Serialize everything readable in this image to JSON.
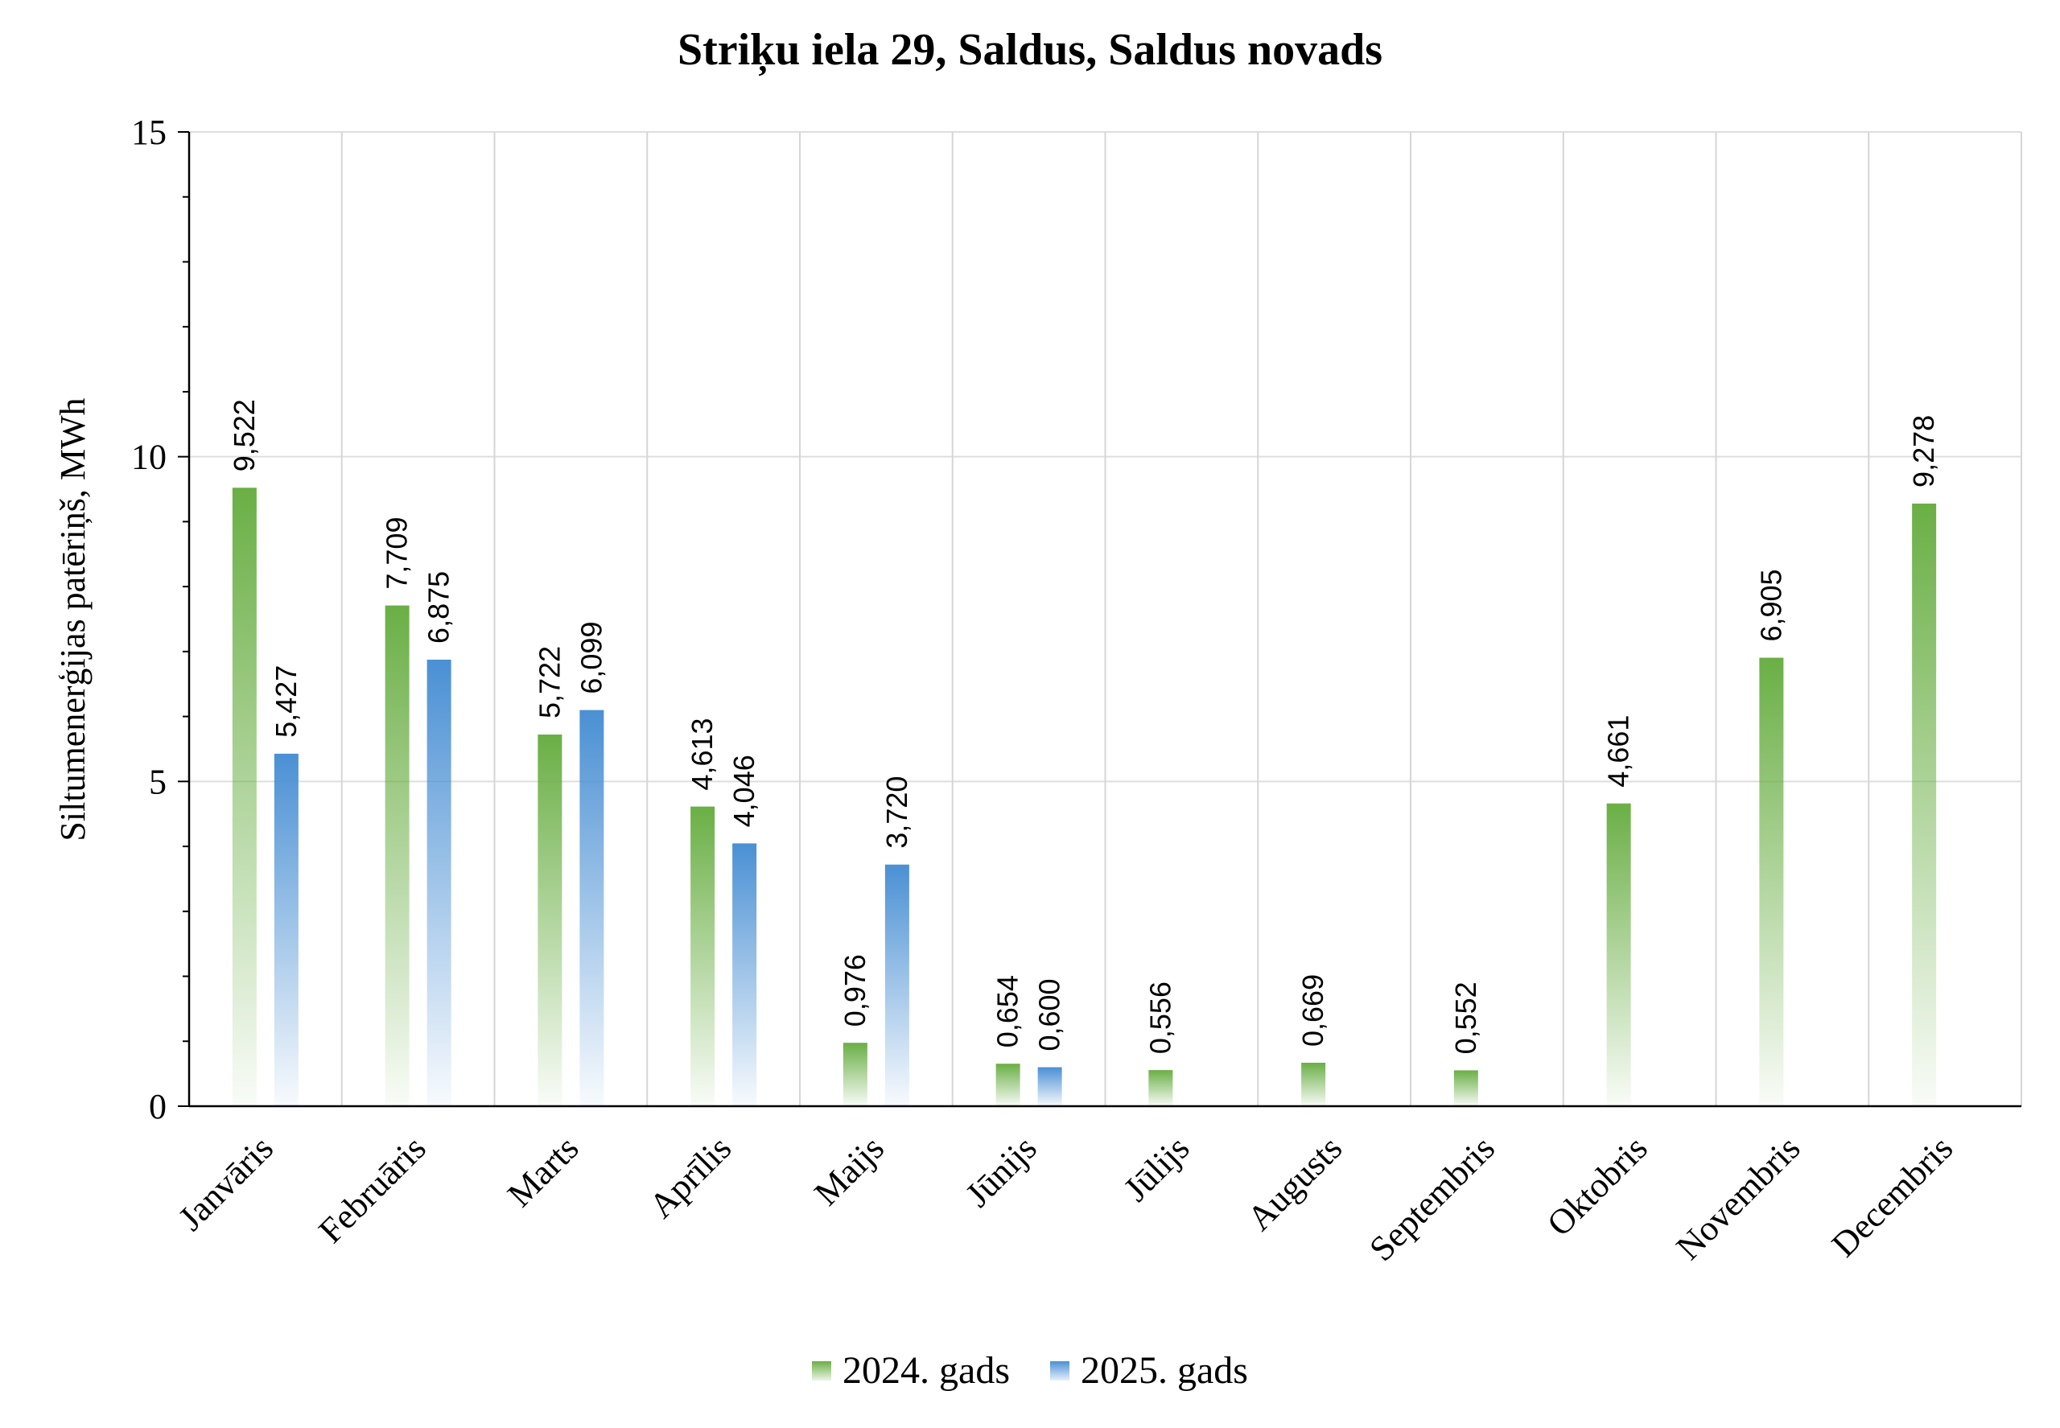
{
  "chart_data": {
    "type": "bar",
    "title": "Striķu iela 29, Saldus, Saldus novads",
    "ylabel": "Siltumenerģijas patēriņš, MWh",
    "xlabel": "",
    "ylim": [
      0,
      15
    ],
    "yticks": [
      "0",
      "5",
      "10",
      "15"
    ],
    "grid": true,
    "legend_position": "bottom",
    "categories": [
      "Janvāris",
      "Februāris",
      "Marts",
      "Aprīlis",
      "Maijs",
      "Jūnijs",
      "Jūlijs",
      "Augusts",
      "Septembris",
      "Oktobris",
      "Novembris",
      "Decembris"
    ],
    "series": [
      {
        "name": "2024. gads",
        "color": "#6aaf45",
        "values": [
          9.522,
          7.709,
          5.722,
          4.613,
          0.976,
          0.654,
          0.556,
          0.669,
          0.552,
          4.661,
          6.905,
          9.278
        ],
        "labels": [
          "9,522",
          "7,709",
          "5,722",
          "4,613",
          "0,976",
          "0,654",
          "0,556",
          "0,669",
          "0,552",
          "4,661",
          "6,905",
          "9,278"
        ]
      },
      {
        "name": "2025. gads",
        "color": "#4a90d4",
        "values": [
          5.427,
          6.875,
          6.099,
          4.046,
          3.72,
          0.6,
          null,
          null,
          null,
          null,
          null,
          null
        ],
        "labels": [
          "5,427",
          "6,875",
          "6,099",
          "4,046",
          "3,720",
          "0,600",
          "",
          "",
          "",
          "",
          "",
          ""
        ]
      }
    ]
  }
}
